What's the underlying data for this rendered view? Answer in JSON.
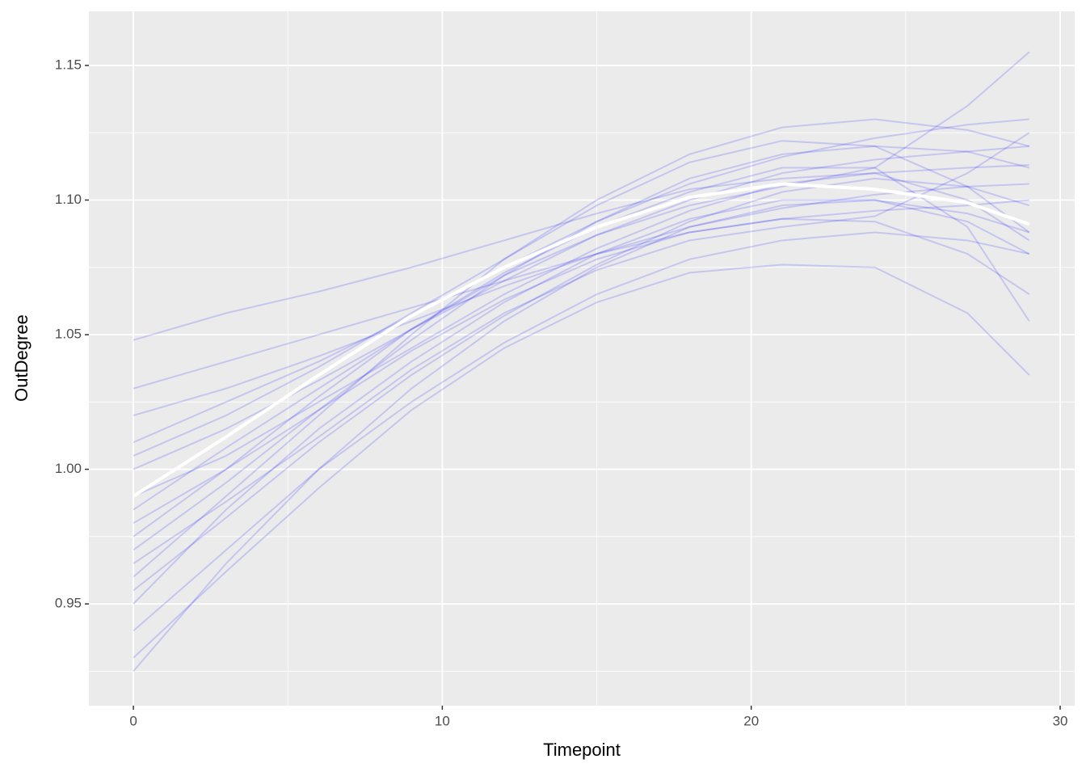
{
  "chart_data": {
    "type": "line",
    "x_label": "Timepoint",
    "y_label": "OutDegree",
    "x": [
      0,
      3,
      6,
      9,
      12,
      15,
      18,
      21,
      24,
      27,
      29
    ],
    "xlim": [
      -1.44,
      30.47
    ],
    "xticks": [
      0,
      10,
      20,
      30
    ],
    "x_minor_grid": [
      5,
      15,
      25
    ],
    "ylim": [
      0.9122,
      1.1701
    ],
    "yticks": [
      0.95,
      {
        "value": 1,
        "label": "1.00"
      },
      1.05,
      {
        "value": 1.1,
        "label": "1.10"
      },
      1.15
    ],
    "y_minor_grid": [
      0.925,
      0.975,
      1.025,
      1.075,
      1.125
    ],
    "grid": true,
    "background": "#ebebeb",
    "line_opacity": 0.16,
    "series": [
      {
        "color": "#0000ff",
        "values": [
          1.048,
          1.058,
          1.066,
          1.075,
          1.085,
          1.095,
          1.104,
          1.108,
          1.11,
          1.112,
          1.113
        ]
      },
      {
        "color": "#0000ff",
        "values": [
          0.925,
          0.965,
          1.0,
          1.03,
          1.055,
          1.075,
          1.09,
          1.098,
          1.1,
          1.095,
          1.088
        ]
      },
      {
        "color": "#0000ff",
        "values": [
          0.95,
          0.985,
          1.015,
          1.04,
          1.062,
          1.08,
          1.093,
          1.1,
          1.1,
          1.092,
          1.08
        ]
      },
      {
        "color": "#0000ff",
        "values": [
          0.97,
          0.995,
          1.022,
          1.048,
          1.072,
          1.092,
          1.108,
          1.117,
          1.12,
          1.118,
          1.112
        ]
      },
      {
        "color": "#0000ff",
        "values": [
          1.0,
          1.015,
          1.033,
          1.052,
          1.07,
          1.087,
          1.1,
          1.11,
          1.115,
          1.118,
          1.12
        ]
      },
      {
        "color": "#0000ff",
        "values": [
          1.02,
          1.03,
          1.042,
          1.055,
          1.068,
          1.08,
          1.09,
          1.097,
          1.102,
          1.105,
          1.106
        ]
      },
      {
        "color": "#0000ff",
        "values": [
          0.96,
          0.99,
          1.02,
          1.05,
          1.078,
          1.1,
          1.117,
          1.127,
          1.13,
          1.126,
          1.12
        ]
      },
      {
        "color": "#0000ff",
        "values": [
          0.98,
          1.0,
          1.022,
          1.044,
          1.063,
          1.078,
          1.088,
          1.093,
          1.092,
          1.08,
          1.065
        ]
      },
      {
        "color": "#0000ff",
        "values": [
          0.94,
          0.97,
          1.0,
          1.025,
          1.047,
          1.065,
          1.078,
          1.085,
          1.088,
          1.085,
          1.08
        ]
      },
      {
        "color": "#0000ff",
        "values": [
          1.01,
          1.025,
          1.04,
          1.057,
          1.075,
          1.092,
          1.106,
          1.116,
          1.123,
          1.128,
          1.13
        ]
      },
      {
        "color": "#0000ff",
        "values": [
          0.99,
          1.005,
          1.025,
          1.045,
          1.065,
          1.082,
          1.096,
          1.106,
          1.11,
          1.1,
          1.085
        ]
      },
      {
        "color": "#0000ff",
        "values": [
          0.965,
          0.988,
          1.012,
          1.037,
          1.058,
          1.074,
          1.085,
          1.09,
          1.094,
          1.11,
          1.125
        ]
      },
      {
        "color": "#0000ff",
        "values": [
          0.93,
          0.962,
          0.993,
          1.022,
          1.045,
          1.062,
          1.073,
          1.076,
          1.075,
          1.058,
          1.035
        ]
      },
      {
        "color": "#0000ff",
        "values": [
          1.005,
          1.02,
          1.038,
          1.058,
          1.078,
          1.098,
          1.114,
          1.122,
          1.12,
          1.105,
          1.088
        ]
      },
      {
        "color": "#0000ff",
        "values": [
          0.975,
          1.0,
          1.027,
          1.052,
          1.072,
          1.087,
          1.098,
          1.105,
          1.112,
          1.135,
          1.155
        ]
      },
      {
        "color": "#0000ff",
        "values": [
          1.03,
          1.04,
          1.05,
          1.06,
          1.07,
          1.08,
          1.088,
          1.093,
          1.096,
          1.098,
          1.1
        ]
      },
      {
        "color": "#0000ff",
        "values": [
          0.955,
          0.982,
          1.01,
          1.035,
          1.057,
          1.076,
          1.092,
          1.103,
          1.108,
          1.105,
          1.098
        ]
      },
      {
        "color": "#0000ff",
        "values": [
          0.985,
          1.008,
          1.03,
          1.052,
          1.073,
          1.09,
          1.103,
          1.112,
          1.112,
          1.09,
          1.055
        ]
      }
    ],
    "mean": {
      "color": "#ffffff",
      "values": [
        0.99,
        1.012,
        1.035,
        1.057,
        1.075,
        1.09,
        1.101,
        1.106,
        1.104,
        1.099,
        1.091
      ]
    }
  }
}
